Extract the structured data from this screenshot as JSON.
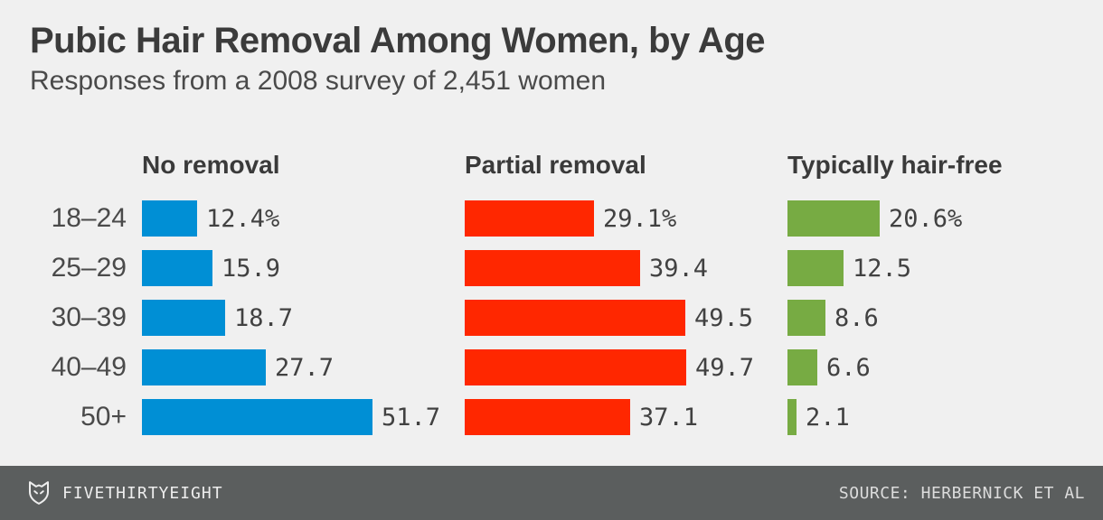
{
  "header": {
    "title": "Pubic Hair Removal Among Women, by Age",
    "subtitle": "Responses from a 2008 survey of 2,451 women"
  },
  "chart_data": {
    "type": "bar",
    "orientation": "horizontal",
    "categories": [
      "18–24",
      "25–29",
      "30–39",
      "40–49",
      "50+"
    ],
    "series": [
      {
        "name": "No removal",
        "color": "#008FD5",
        "values": [
          12.4,
          15.9,
          18.7,
          27.7,
          51.7
        ],
        "labels": [
          "12.4%",
          "15.9",
          "18.7",
          "27.7",
          "51.7"
        ]
      },
      {
        "name": "Partial removal",
        "color": "#FF2700",
        "values": [
          29.1,
          39.4,
          49.5,
          49.7,
          37.1
        ],
        "labels": [
          "29.1%",
          "39.4",
          "49.5",
          "49.7",
          "37.1"
        ]
      },
      {
        "name": "Typically hair-free",
        "color": "#77AB43",
        "values": [
          20.6,
          12.5,
          8.6,
          6.6,
          2.1
        ],
        "labels": [
          "20.6%",
          "12.5",
          "8.6",
          "6.6",
          "2.1"
        ]
      }
    ],
    "value_unit": "percent",
    "xlim": [
      0,
      55
    ],
    "grid": false,
    "legend": "column-headers",
    "title": "Pubic Hair Removal Among Women, by Age",
    "subtitle": "Responses from a 2008 survey of 2,451 women"
  },
  "colors": {
    "background": "#F0F0F0",
    "footer_background": "#5B5E5E",
    "title_text": "#3B3B3B",
    "value_text": "#414141"
  },
  "footer": {
    "brand": "FIVETHIRTYEIGHT",
    "source": "SOURCE: HERBERNICK ET AL",
    "logo_icon": "fivethirtyeight-fox-logo-icon"
  }
}
